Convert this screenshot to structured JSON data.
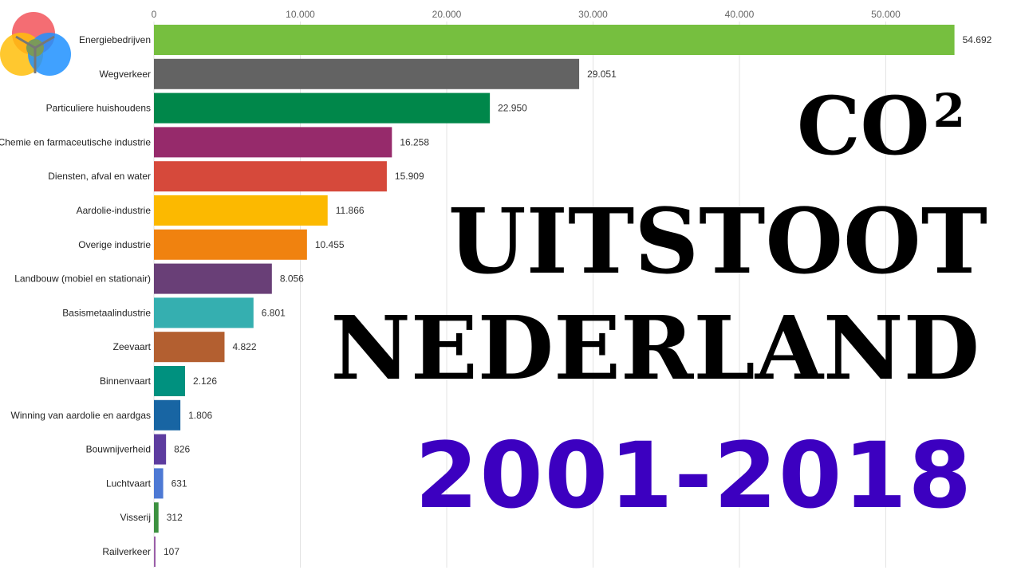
{
  "headline": {
    "line1": "CO",
    "line1_sup": "2",
    "line2": "UITSTOOT",
    "line3": "NEDERLAND",
    "years": "2001-2018",
    "years_color": "#3c00c0"
  },
  "logo_icon": "three-overlapping-circles-icon",
  "chart_data": {
    "type": "bar",
    "orientation": "horizontal",
    "xlim": [
      0,
      55000
    ],
    "ticks": [
      0,
      10000,
      20000,
      30000,
      40000,
      50000
    ],
    "tick_labels": [
      "0",
      "10.000",
      "20.000",
      "30.000",
      "40.000",
      "50.000"
    ],
    "grid": true,
    "categories": [
      "Energiebedrijven",
      "Wegverkeer",
      "Particuliere huishoudens",
      "Chemie en farmaceutische industrie",
      "Diensten, afval en water",
      "Aardolie-industrie",
      "Overige industrie",
      "Landbouw (mobiel en stationair)",
      "Basismetaalindustrie",
      "Zeevaart",
      "Binnenvaart",
      "Winning van aardolie en aardgas",
      "Bouwnijverheid",
      "Luchtvaart",
      "Visserij",
      "Railverkeer"
    ],
    "values": [
      54692,
      29051,
      22950,
      16258,
      15909,
      11866,
      10455,
      8056,
      6801,
      4822,
      2126,
      1806,
      826,
      631,
      312,
      107
    ],
    "value_labels": [
      "54.692",
      "29.051",
      "22.950",
      "16.258",
      "15.909",
      "11.866",
      "10.455",
      "8.056",
      "6.801",
      "4.822",
      "2.126",
      "1.806",
      "826",
      "631",
      "312",
      "107"
    ],
    "colors": [
      "#76bf3f",
      "#636363",
      "#00874a",
      "#962a6b",
      "#d6493b",
      "#fcb900",
      "#f0820f",
      "#693f77",
      "#35afb0",
      "#b35f30",
      "#00917f",
      "#1865a3",
      "#5d3c9f",
      "#4d79d4",
      "#3c9140",
      "#9a5ea8"
    ]
  }
}
